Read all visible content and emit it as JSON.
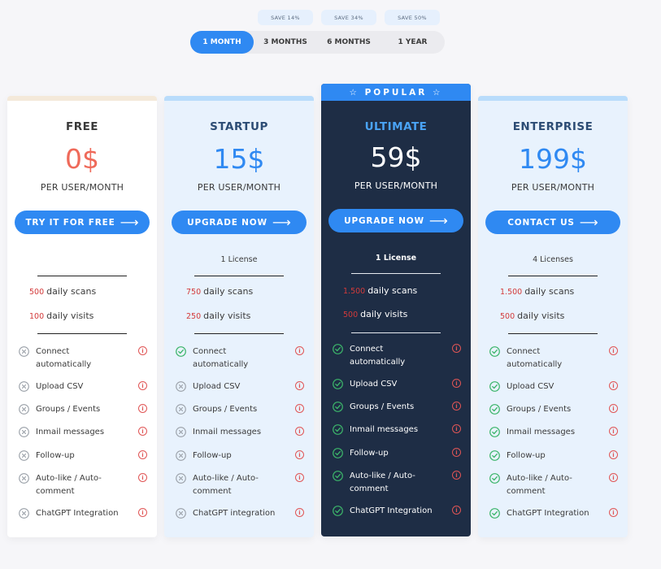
{
  "save_badges": [
    "SAVE 14%",
    "SAVE 34%",
    "SAVE 50%"
  ],
  "periods": [
    "1 MONTH",
    "3 MONTHS",
    "6 MONTHS",
    "1 YEAR"
  ],
  "active_period": "1 MONTH",
  "colors": {
    "accent": "#2f89f2",
    "dark_card": "#1e2d45",
    "tinted_card": "#e8f2fd",
    "quota_number": "#d33a3a",
    "check": "#3cb56a",
    "cross": "#9aa0a8",
    "free_price": "#ef6a5a"
  },
  "popular_label": "☆ POPULAR ☆",
  "features": [
    "Connect automatically",
    "Upload CSV",
    "Groups / Events",
    "Inmail messages",
    "Follow-up",
    "Auto-like / Auto-comment",
    "ChatGPT Integration"
  ],
  "plans": [
    {
      "name": "FREE",
      "price": "0$",
      "per_user": "PER USER/MONTH",
      "cta": "TRY IT FOR FREE",
      "license": "",
      "scans_num": "500",
      "scans_label": "daily scans",
      "visits_num": "100",
      "visits_label": "daily visits",
      "features": [
        "Connect automatically",
        "Upload CSV",
        "Groups / Events",
        "Inmail messages",
        "Follow-up",
        "Auto-like / Auto-comment",
        "ChatGPT Integration"
      ],
      "included": [
        false,
        false,
        false,
        false,
        false,
        false,
        false
      ]
    },
    {
      "name": "STARTUP",
      "price": "15$",
      "per_user": "PER USER/MONTH",
      "cta": "UPGRADE NOW",
      "license": "1 License",
      "scans_num": "750",
      "scans_label": "daily scans",
      "visits_num": "250",
      "visits_label": "daily visits",
      "features": [
        "Connect automatically",
        "Upload CSV",
        "Groups / Events",
        "Inmail messages",
        "Follow-up",
        "Auto-like / Auto-comment",
        "ChatGPT integration"
      ],
      "included": [
        true,
        false,
        false,
        false,
        false,
        false,
        false
      ]
    },
    {
      "name": "ULTIMATE",
      "price": "59$",
      "per_user": "PER USER/MONTH",
      "cta": "UPGRADE NOW",
      "license": "1 License",
      "scans_num": "1.500",
      "scans_label": "daily scans",
      "visits_num": "500",
      "visits_label": "daily visits",
      "features": [
        "Connect automatically",
        "Upload CSV",
        "Groups / Events",
        "Inmail messages",
        "Follow-up",
        "Auto-like / Auto-comment",
        "ChatGPT Integration"
      ],
      "included": [
        true,
        true,
        true,
        true,
        true,
        true,
        true
      ]
    },
    {
      "name": "ENTERPRISE",
      "price": "199$",
      "per_user": "PER USER/MONTH",
      "cta": "CONTACT US",
      "license": "4 Licenses",
      "scans_num": "1.500",
      "scans_label": "daily scans",
      "visits_num": "500",
      "visits_label": "daily visits",
      "features": [
        "Connect automatically",
        "Upload CSV",
        "Groups / Events",
        "Inmail messages",
        "Follow-up",
        "Auto-like / Auto-comment",
        "ChatGPT Integration"
      ],
      "included": [
        true,
        true,
        true,
        true,
        true,
        true,
        true
      ]
    }
  ]
}
